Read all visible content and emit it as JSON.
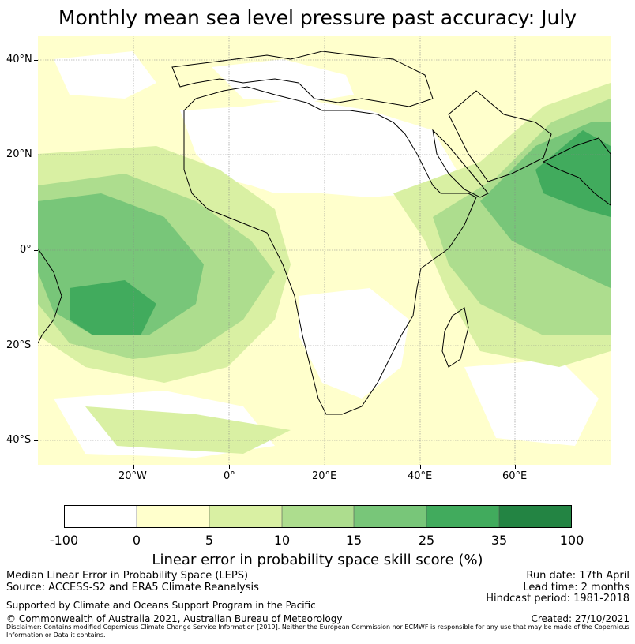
{
  "title": "Monthly mean sea level pressure past accuracy: July",
  "map": {
    "lat_ticks": [
      "40°N",
      "20°N",
      "0°",
      "20°S",
      "40°S"
    ],
    "lon_ticks": [
      "20°W",
      "0°",
      "20°E",
      "40°E",
      "60°E"
    ],
    "colors": {
      "c0": "#ffffff",
      "c1": "#ffffcc",
      "c2": "#d9f0a3",
      "c3": "#addd8e",
      "c4": "#78c679",
      "c5": "#41ab5d",
      "c6": "#238443",
      "coast": "#000000",
      "grid": "#888888"
    }
  },
  "colorbar": {
    "labels": [
      "-100",
      "0",
      "5",
      "10",
      "15",
      "25",
      "35",
      "100"
    ],
    "title": "Linear error in probability space skill score (%)"
  },
  "footer": {
    "left_line1": "Median Linear Error in Probability Space (LEPS)",
    "left_line2": "Source: ACCESS-S2 and ERA5 Climate Reanalysis",
    "right_line1": "Run date: 17th April",
    "right_line2": "Lead time: 2 months",
    "right_line3": "Hindcast period: 1981-2018",
    "support": "Supported by Climate and Oceans Support Program in the Pacific",
    "copyright": "© Commonwealth of Australia 2021, Australian Bureau of Meteorology",
    "created": "Created: 27/10/2021",
    "disclaimer": "Disclaimer: Contains modified Copernicus Climate Change Service Information [2019]. Neither the European Commission nor ECMWF is responsible for any use that may be made of the Copernicus Information or Data it contains."
  }
}
